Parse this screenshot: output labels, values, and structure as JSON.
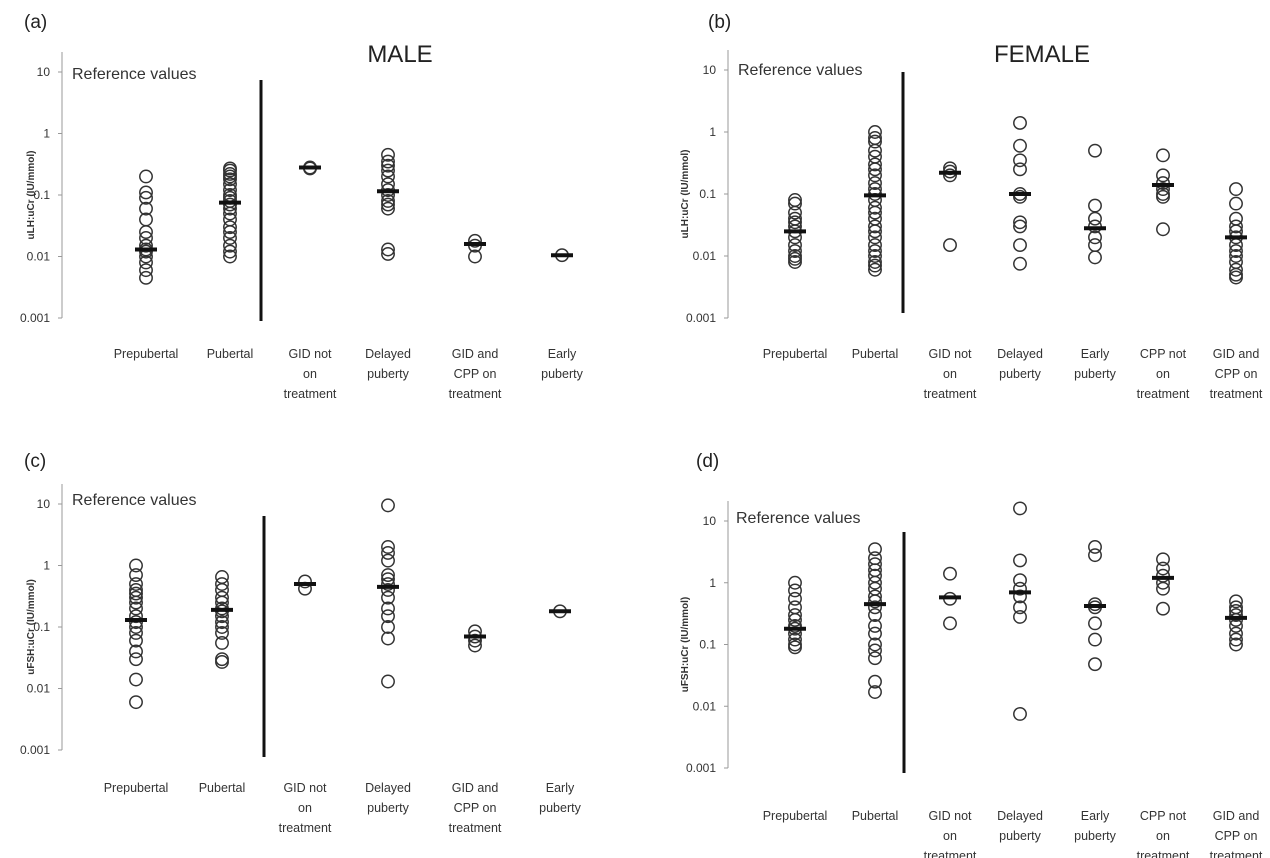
{
  "chart_data": [
    {
      "type": "scatter",
      "panel": "(a)",
      "title": "MALE",
      "ylabel": "uLH:uCr (IU/mmol)",
      "yscale": "log",
      "ylim": [
        0.001,
        10
      ],
      "yticks": [
        "10",
        "1",
        "0.1",
        "0.01",
        "0.001"
      ],
      "reference_label": "Reference values",
      "categories": [
        [
          "Prepubertal"
        ],
        [
          "Pubertal"
        ],
        [
          "GID not",
          "on",
          "treatment"
        ],
        [
          "Delayed",
          "puberty"
        ],
        [
          "GID and",
          "CPP on",
          "treatment"
        ],
        [
          "Early",
          "puberty"
        ]
      ],
      "points": [
        [
          0.0045,
          0.006,
          0.008,
          0.01,
          0.012,
          0.013,
          0.015,
          0.02,
          0.025,
          0.04,
          0.06,
          0.09,
          0.11,
          0.2
        ],
        [
          0.01,
          0.012,
          0.015,
          0.02,
          0.025,
          0.03,
          0.04,
          0.05,
          0.06,
          0.07,
          0.08,
          0.09,
          0.1,
          0.12,
          0.15,
          0.18,
          0.2,
          0.22,
          0.25,
          0.27
        ],
        [
          0.27,
          0.28
        ],
        [
          0.011,
          0.013,
          0.06,
          0.07,
          0.08,
          0.1,
          0.12,
          0.15,
          0.2,
          0.25,
          0.3,
          0.35,
          0.45
        ],
        [
          0.01,
          0.015,
          0.018
        ],
        [
          0.0105
        ]
      ],
      "medians": [
        0.013,
        0.075,
        0.28,
        0.115,
        0.016,
        0.0105
      ]
    },
    {
      "type": "scatter",
      "panel": "(b)",
      "title": "FEMALE",
      "ylabel": "uLH:uCr (IU/mmol)",
      "yscale": "log",
      "ylim": [
        0.001,
        10
      ],
      "yticks": [
        "10",
        "1",
        "0.1",
        "0.01",
        "0.001"
      ],
      "reference_label": "Reference values",
      "categories": [
        [
          "Prepubertal"
        ],
        [
          "Pubertal"
        ],
        [
          "GID not",
          "on",
          "treatment"
        ],
        [
          "Delayed",
          "puberty"
        ],
        [
          "Early",
          "puberty"
        ],
        [
          "CPP not",
          "on",
          "treatment"
        ],
        [
          "GID and",
          "CPP on",
          "treatment"
        ]
      ],
      "points": [
        [
          0.008,
          0.009,
          0.01,
          0.012,
          0.015,
          0.02,
          0.025,
          0.03,
          0.035,
          0.04,
          0.05,
          0.07,
          0.08
        ],
        [
          0.006,
          0.007,
          0.008,
          0.01,
          0.012,
          0.015,
          0.02,
          0.025,
          0.03,
          0.04,
          0.05,
          0.06,
          0.08,
          0.1,
          0.12,
          0.15,
          0.2,
          0.25,
          0.3,
          0.4,
          0.5,
          0.7,
          0.8,
          1.0
        ],
        [
          0.015,
          0.2,
          0.23,
          0.26
        ],
        [
          0.0075,
          0.015,
          0.03,
          0.035,
          0.09,
          0.1,
          0.25,
          0.35,
          0.6,
          1.4
        ],
        [
          0.0095,
          0.015,
          0.02,
          0.03,
          0.04,
          0.065,
          0.5
        ],
        [
          0.027,
          0.09,
          0.1,
          0.12,
          0.15,
          0.2,
          0.42
        ],
        [
          0.0045,
          0.005,
          0.006,
          0.008,
          0.01,
          0.012,
          0.015,
          0.02,
          0.025,
          0.03,
          0.04,
          0.07,
          0.12
        ]
      ],
      "medians": [
        0.025,
        0.095,
        0.22,
        0.1,
        0.028,
        0.14,
        0.02
      ]
    },
    {
      "type": "scatter",
      "panel": "(c)",
      "title": "",
      "ylabel": "uFSH:uCr (IU/mmol)",
      "yscale": "log",
      "ylim": [
        0.001,
        10
      ],
      "yticks": [
        "10",
        "1",
        "0.1",
        "0.01",
        "0.001"
      ],
      "reference_label": "Reference values",
      "categories": [
        [
          "Prepubertal"
        ],
        [
          "Pubertal"
        ],
        [
          "GID not",
          "on",
          "treatment"
        ],
        [
          "Delayed",
          "puberty"
        ],
        [
          "GID and",
          "CPP on",
          "treatment"
        ],
        [
          "Early",
          "puberty"
        ]
      ],
      "points": [
        [
          0.006,
          0.014,
          0.03,
          0.04,
          0.06,
          0.08,
          0.1,
          0.12,
          0.15,
          0.2,
          0.25,
          0.3,
          0.35,
          0.4,
          0.5,
          0.7,
          1.0
        ],
        [
          0.027,
          0.03,
          0.055,
          0.08,
          0.1,
          0.12,
          0.15,
          0.18,
          0.2,
          0.25,
          0.3,
          0.4,
          0.5,
          0.65
        ],
        [
          0.42,
          0.55
        ],
        [
          0.013,
          0.065,
          0.1,
          0.15,
          0.2,
          0.3,
          0.4,
          0.5,
          0.6,
          0.7,
          1.2,
          1.6,
          2.0,
          9.5
        ],
        [
          0.05,
          0.06,
          0.07,
          0.085
        ],
        [
          0.18
        ]
      ],
      "medians": [
        0.13,
        0.19,
        0.5,
        0.45,
        0.07,
        0.18
      ]
    },
    {
      "type": "scatter",
      "panel": "(d)",
      "title": "",
      "ylabel": "uFSH:uCr (IU/mmol)",
      "yscale": "log",
      "ylim": [
        0.001,
        10
      ],
      "yticks": [
        "10",
        "1",
        "0.1",
        "0.01",
        "0.001"
      ],
      "reference_label": "Reference values",
      "categories": [
        [
          "Prepubertal"
        ],
        [
          "Pubertal"
        ],
        [
          "GID not",
          "on",
          "treatment"
        ],
        [
          "Delayed",
          "puberty"
        ],
        [
          "Early",
          "puberty"
        ],
        [
          "CPP not",
          "on",
          "treatment"
        ],
        [
          "GID and",
          "CPP on",
          "treatment"
        ]
      ],
      "points": [
        [
          0.09,
          0.1,
          0.12,
          0.15,
          0.18,
          0.2,
          0.25,
          0.3,
          0.4,
          0.55,
          0.75,
          1.0
        ],
        [
          0.017,
          0.025,
          0.06,
          0.08,
          0.1,
          0.15,
          0.2,
          0.3,
          0.4,
          0.5,
          0.6,
          0.8,
          1.0,
          1.3,
          1.6,
          2.0,
          2.5,
          3.5
        ],
        [
          0.22,
          0.55,
          1.4
        ],
        [
          0.0075,
          0.28,
          0.4,
          0.6,
          0.8,
          1.1,
          2.3,
          16
        ],
        [
          0.048,
          0.12,
          0.22,
          0.4,
          0.45,
          2.8,
          3.8
        ],
        [
          0.38,
          0.8,
          1.0,
          1.3,
          1.7,
          2.4
        ],
        [
          0.1,
          0.12,
          0.15,
          0.2,
          0.25,
          0.3,
          0.35,
          0.4,
          0.5
        ]
      ],
      "medians": [
        0.18,
        0.45,
        0.58,
        0.7,
        0.42,
        1.2,
        0.27
      ]
    }
  ]
}
